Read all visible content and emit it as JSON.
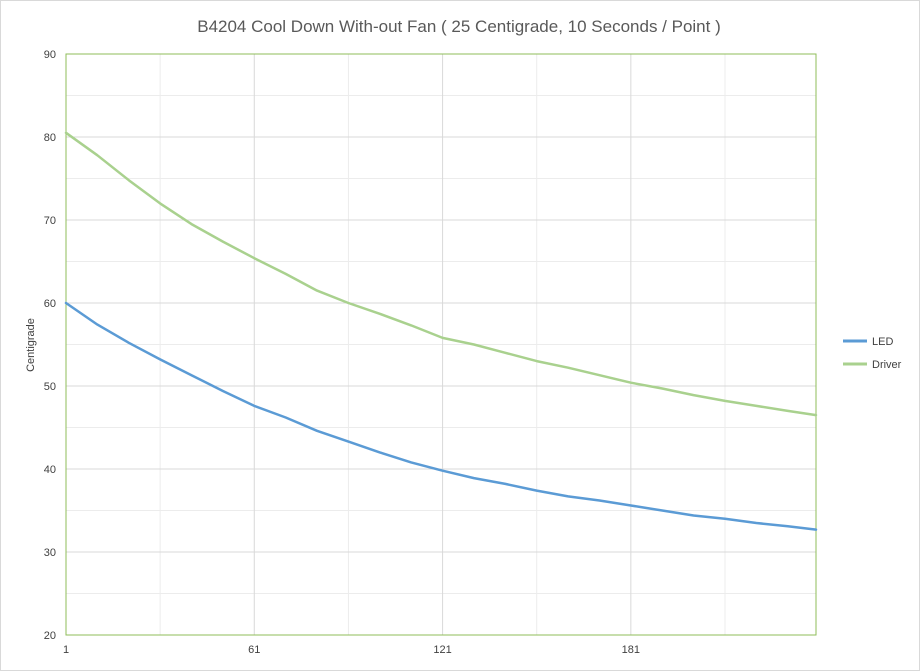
{
  "chart_data": {
    "type": "line",
    "title": "B4204 Cool Down With-out Fan ( 25 Centigrade, 10 Seconds / Point )",
    "xlabel": "",
    "ylabel": "Centigrade",
    "xlim": [
      1,
      240
    ],
    "ylim": [
      20,
      90
    ],
    "x_ticks": [
      1,
      61,
      121,
      181
    ],
    "y_ticks": [
      20,
      30,
      40,
      50,
      60,
      70,
      80,
      90
    ],
    "grid": true,
    "legend_position": "right",
    "series": [
      {
        "name": "LED",
        "color": "#5b9bd5",
        "x": [
          1,
          11,
          21,
          31,
          41,
          51,
          61,
          71,
          81,
          91,
          101,
          111,
          121,
          131,
          141,
          151,
          161,
          171,
          181,
          191,
          201,
          211,
          221,
          231,
          240
        ],
        "y": [
          60.0,
          57.4,
          55.2,
          53.2,
          51.3,
          49.4,
          47.6,
          46.2,
          44.6,
          43.3,
          42.0,
          40.8,
          39.8,
          38.9,
          38.2,
          37.4,
          36.7,
          36.2,
          35.6,
          35.0,
          34.4,
          34.0,
          33.5,
          33.1,
          32.7
        ]
      },
      {
        "name": "Driver",
        "color": "#a9d18e",
        "x": [
          1,
          11,
          21,
          31,
          41,
          51,
          61,
          71,
          81,
          91,
          101,
          111,
          121,
          131,
          141,
          151,
          161,
          171,
          181,
          191,
          201,
          211,
          221,
          231,
          240
        ],
        "y": [
          80.5,
          77.8,
          74.8,
          72.0,
          69.5,
          67.4,
          65.4,
          63.5,
          61.5,
          60.0,
          58.7,
          57.3,
          55.8,
          55.0,
          54.0,
          53.0,
          52.2,
          51.3,
          50.4,
          49.7,
          48.9,
          48.2,
          47.6,
          47.0,
          46.5
        ]
      }
    ]
  }
}
